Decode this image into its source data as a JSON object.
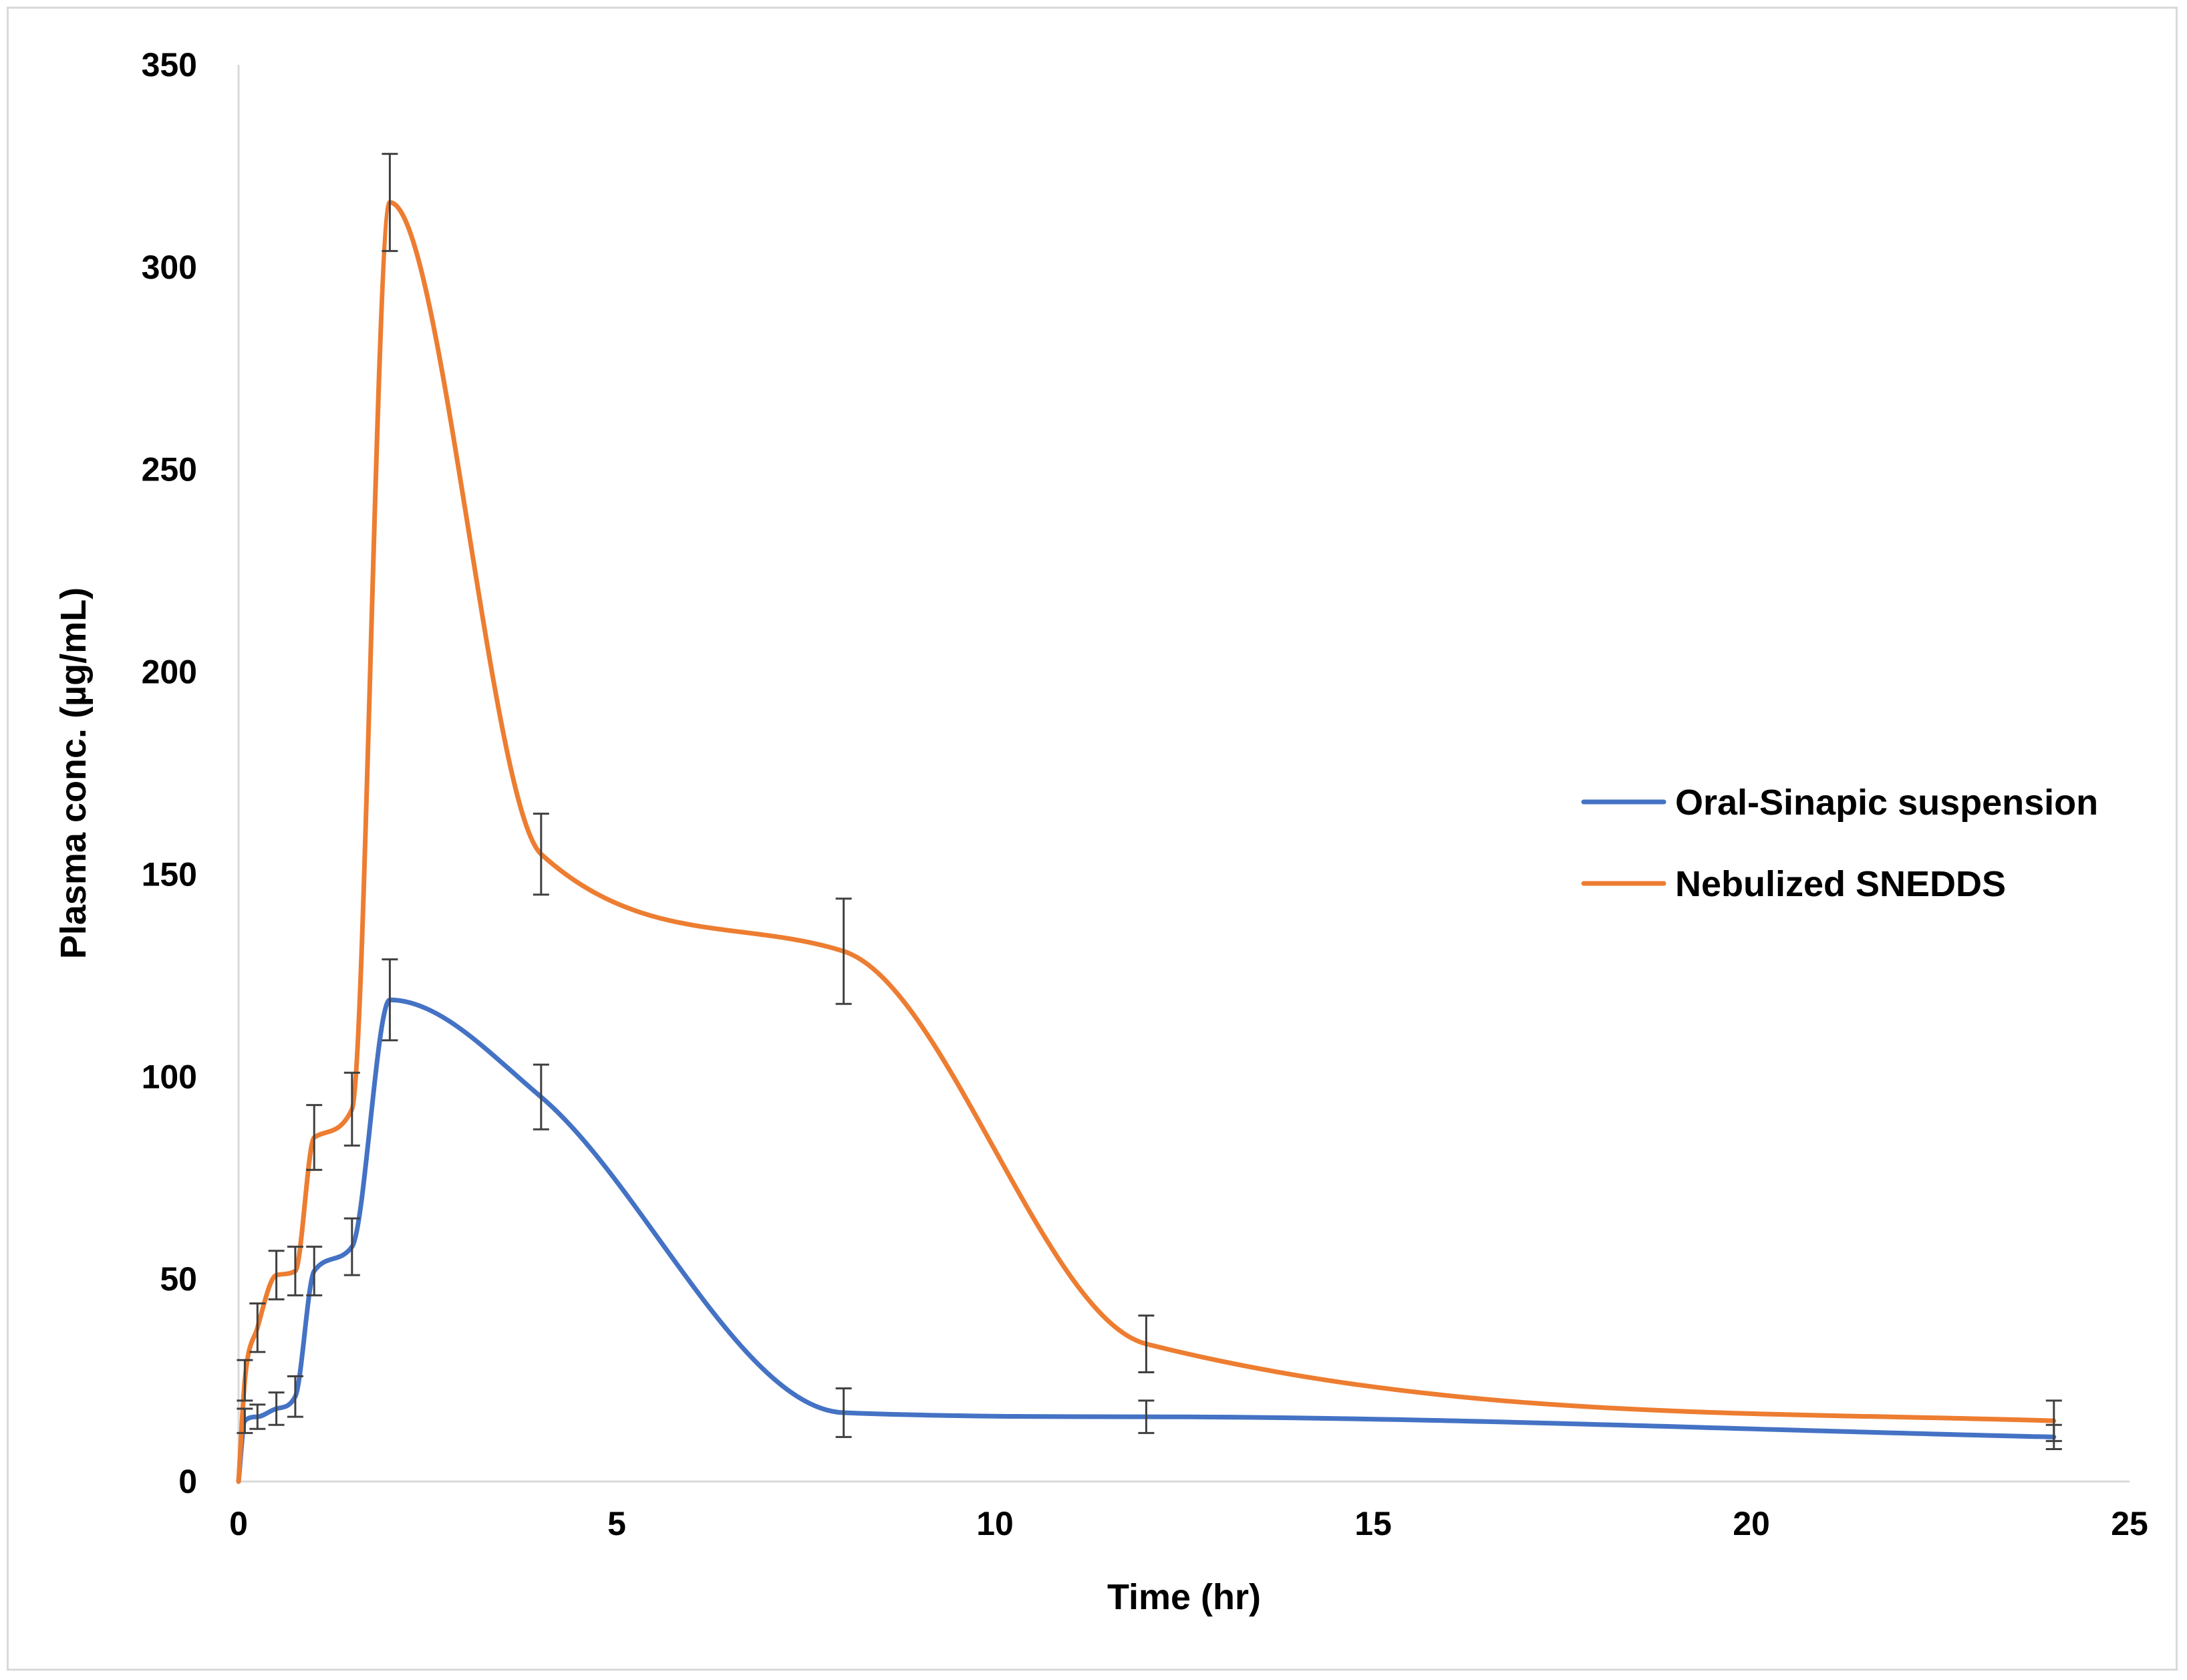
{
  "chart_data": {
    "type": "line",
    "title": "",
    "xlabel": "Time (hr)",
    "ylabel": "Plasma conc.  (µg/mL)",
    "xlim": [
      0,
      25
    ],
    "ylim": [
      0,
      350
    ],
    "xticks": [
      0,
      5,
      10,
      15,
      20,
      25
    ],
    "yticks": [
      0,
      50,
      100,
      150,
      200,
      250,
      300,
      350
    ],
    "grid": false,
    "legend_position": "right",
    "series": [
      {
        "name": "Oral-Sinapic suspension",
        "color": "#4472c4",
        "x": [
          0,
          0.083,
          0.25,
          0.5,
          0.75,
          1,
          1.5,
          2,
          4,
          8,
          12,
          24
        ],
        "y": [
          0,
          15,
          16,
          18,
          21,
          52,
          58,
          119,
          95,
          17,
          16,
          11
        ],
        "error": [
          0,
          3,
          3,
          4,
          5,
          6,
          7,
          10,
          8,
          6,
          4,
          3
        ]
      },
      {
        "name": "Nebulized SNEDDS",
        "color": "#ed7d31",
        "x": [
          0,
          0.083,
          0.25,
          0.5,
          0.75,
          1,
          1.5,
          2,
          4,
          8,
          12,
          24
        ],
        "y": [
          0,
          25,
          38,
          51,
          52,
          85,
          92,
          316,
          155,
          131,
          34,
          15
        ],
        "error": [
          0,
          5,
          6,
          6,
          6,
          8,
          9,
          12,
          10,
          13,
          7,
          5
        ]
      }
    ]
  }
}
